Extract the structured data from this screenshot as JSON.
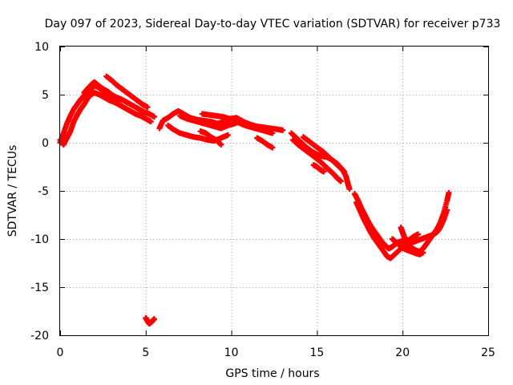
{
  "chart_data": {
    "type": "scatter",
    "title": "Day 097 of 2023, Sidereal Day-to-day VTEC variation (SDTVAR) for receiver p733",
    "xlabel": "GPS time / hours",
    "ylabel": "SDTVAR / TECUs",
    "xlim": [
      0,
      25
    ],
    "ylim": [
      -20,
      10
    ],
    "xticks": [
      0,
      5,
      10,
      15,
      20,
      25
    ],
    "yticks": [
      -20,
      -15,
      -10,
      -5,
      0,
      5,
      10
    ],
    "grid": true,
    "marker": "+",
    "series": [
      {
        "name": "SDTVAR",
        "color": "#ff0000",
        "tracks": [
          [
            [
              0.0,
              0.0
            ],
            [
              0.2,
              1.0
            ],
            [
              0.4,
              2.0
            ],
            [
              0.6,
              2.8
            ],
            [
              0.8,
              3.5
            ],
            [
              1.0,
              4.0
            ],
            [
              1.2,
              4.5
            ],
            [
              1.4,
              4.9
            ],
            [
              1.6,
              5.3
            ],
            [
              1.8,
              5.6
            ],
            [
              2.0,
              5.9
            ],
            [
              2.2,
              5.8
            ],
            [
              2.5,
              5.4
            ],
            [
              2.8,
              5.1
            ],
            [
              3.1,
              4.8
            ],
            [
              3.4,
              4.6
            ],
            [
              3.7,
              4.4
            ],
            [
              4.0,
              4.1
            ],
            [
              4.3,
              3.8
            ],
            [
              4.6,
              3.5
            ],
            [
              4.9,
              3.2
            ],
            [
              5.2,
              3.0
            ],
            [
              5.5,
              2.7
            ]
          ],
          [
            [
              0.0,
              0.3
            ],
            [
              0.2,
              -0.2
            ],
            [
              0.4,
              0.5
            ],
            [
              0.6,
              1.2
            ],
            [
              0.8,
              2.2
            ],
            [
              1.0,
              2.9
            ],
            [
              1.2,
              3.5
            ],
            [
              1.4,
              4.0
            ],
            [
              1.6,
              4.6
            ],
            [
              1.8,
              5.0
            ],
            [
              2.0,
              5.2
            ],
            [
              2.3,
              5.0
            ],
            [
              2.6,
              4.7
            ],
            [
              2.9,
              4.4
            ],
            [
              3.2,
              4.2
            ],
            [
              3.5,
              3.9
            ],
            [
              3.8,
              3.6
            ],
            [
              4.1,
              3.3
            ],
            [
              4.4,
              3.0
            ],
            [
              4.7,
              2.8
            ],
            [
              5.0,
              2.5
            ],
            [
              5.3,
              2.2
            ]
          ],
          [
            [
              1.4,
              5.2
            ],
            [
              1.6,
              5.6
            ],
            [
              1.8,
              6.0
            ],
            [
              2.0,
              6.3
            ],
            [
              2.2,
              6.0
            ],
            [
              2.5,
              5.6
            ],
            [
              2.8,
              5.3
            ],
            [
              3.0,
              5.0
            ],
            [
              3.3,
              4.7
            ],
            [
              3.6,
              4.5
            ]
          ],
          [
            [
              2.7,
              6.9
            ],
            [
              3.0,
              6.5
            ],
            [
              3.3,
              6.0
            ],
            [
              3.6,
              5.6
            ],
            [
              3.9,
              5.2
            ],
            [
              4.2,
              4.8
            ],
            [
              4.5,
              4.4
            ],
            [
              4.8,
              4.0
            ],
            [
              5.1,
              3.7
            ]
          ],
          [
            [
              5.8,
              1.5
            ],
            [
              6.0,
              2.3
            ],
            [
              6.3,
              2.6
            ],
            [
              6.6,
              3.0
            ],
            [
              6.9,
              3.3
            ],
            [
              7.2,
              3.0
            ],
            [
              7.6,
              2.6
            ],
            [
              8.0,
              2.4
            ],
            [
              8.4,
              2.3
            ],
            [
              8.8,
              2.2
            ],
            [
              9.2,
              2.0
            ],
            [
              9.6,
              2.2
            ],
            [
              10.0,
              2.5
            ],
            [
              10.4,
              2.1
            ],
            [
              10.8,
              1.8
            ],
            [
              11.2,
              1.6
            ],
            [
              11.6,
              1.4
            ],
            [
              12.0,
              1.2
            ],
            [
              12.4,
              1.0
            ]
          ],
          [
            [
              6.3,
              1.8
            ],
            [
              6.6,
              1.4
            ],
            [
              7.0,
              1.0
            ],
            [
              7.4,
              0.8
            ],
            [
              7.8,
              0.6
            ],
            [
              8.2,
              0.5
            ],
            [
              8.6,
              0.3
            ],
            [
              9.0,
              0.2
            ],
            [
              9.4,
              0.5
            ],
            [
              9.8,
              0.8
            ]
          ],
          [
            [
              7.0,
              2.8
            ],
            [
              7.4,
              2.5
            ],
            [
              7.8,
              2.3
            ],
            [
              8.2,
              2.1
            ],
            [
              8.6,
              1.9
            ],
            [
              9.0,
              1.7
            ],
            [
              9.4,
              1.5
            ],
            [
              9.8,
              1.8
            ],
            [
              10.2,
              2.0
            ],
            [
              10.6,
              2.3
            ]
          ],
          [
            [
              8.2,
              1.2
            ],
            [
              8.5,
              1.0
            ],
            [
              8.8,
              0.6
            ],
            [
              9.1,
              0.3
            ],
            [
              9.4,
              -0.2
            ]
          ],
          [
            [
              8.3,
              3.0
            ],
            [
              8.7,
              2.9
            ],
            [
              9.1,
              2.8
            ],
            [
              9.5,
              2.7
            ],
            [
              9.9,
              2.5
            ],
            [
              10.3,
              2.6
            ],
            [
              10.7,
              2.2
            ],
            [
              11.1,
              1.9
            ],
            [
              11.5,
              1.7
            ],
            [
              11.9,
              1.6
            ],
            [
              12.3,
              1.5
            ],
            [
              12.7,
              1.4
            ],
            [
              13.0,
              1.3
            ]
          ],
          [
            [
              11.5,
              0.5
            ],
            [
              11.8,
              0.2
            ],
            [
              12.1,
              -0.2
            ],
            [
              12.4,
              -0.5
            ]
          ],
          [
            [
              13.5,
              1.0
            ],
            [
              13.8,
              0.5
            ],
            [
              14.1,
              0.0
            ],
            [
              14.4,
              -0.5
            ],
            [
              14.7,
              -0.9
            ],
            [
              15.0,
              -1.2
            ],
            [
              15.3,
              -1.4
            ],
            [
              15.6,
              -1.5
            ],
            [
              15.9,
              -1.8
            ],
            [
              16.2,
              -2.2
            ],
            [
              16.5,
              -2.8
            ],
            [
              16.7,
              -3.5
            ],
            [
              16.8,
              -4.2
            ],
            [
              16.9,
              -4.8
            ]
          ],
          [
            [
              13.6,
              0.3
            ],
            [
              13.9,
              -0.2
            ],
            [
              14.2,
              -0.6
            ],
            [
              14.5,
              -1.0
            ],
            [
              14.8,
              -1.4
            ],
            [
              15.1,
              -1.8
            ],
            [
              15.4,
              -2.3
            ],
            [
              15.7,
              -2.8
            ],
            [
              16.0,
              -3.3
            ],
            [
              16.2,
              -3.7
            ],
            [
              16.4,
              -4.0
            ]
          ],
          [
            [
              14.2,
              0.6
            ],
            [
              14.5,
              0.2
            ],
            [
              14.8,
              -0.2
            ],
            [
              15.1,
              -0.6
            ],
            [
              15.4,
              -1.0
            ],
            [
              15.7,
              -1.5
            ],
            [
              16.0,
              -2.0
            ],
            [
              16.3,
              -2.5
            ],
            [
              16.6,
              -3.0
            ]
          ],
          [
            [
              14.8,
              -2.3
            ],
            [
              15.0,
              -2.5
            ],
            [
              15.2,
              -2.8
            ],
            [
              15.4,
              -3.0
            ]
          ],
          [
            [
              17.2,
              -5.3
            ],
            [
              17.4,
              -6.0
            ],
            [
              17.6,
              -6.8
            ],
            [
              17.8,
              -7.5
            ],
            [
              18.0,
              -8.2
            ],
            [
              18.2,
              -8.8
            ],
            [
              18.4,
              -9.3
            ],
            [
              18.6,
              -9.8
            ],
            [
              18.8,
              -10.3
            ],
            [
              19.0,
              -10.7
            ],
            [
              19.2,
              -11.0
            ],
            [
              19.4,
              -10.8
            ],
            [
              19.6,
              -10.5
            ],
            [
              19.8,
              -10.3
            ],
            [
              20.0,
              -10.2
            ],
            [
              20.2,
              -10.5
            ],
            [
              20.4,
              -10.8
            ],
            [
              20.6,
              -11.0
            ],
            [
              20.8,
              -11.2
            ],
            [
              21.0,
              -11.3
            ],
            [
              21.2,
              -11.0
            ],
            [
              21.4,
              -10.5
            ],
            [
              21.6,
              -10.0
            ],
            [
              21.8,
              -9.5
            ],
            [
              22.0,
              -9.0
            ],
            [
              22.2,
              -8.3
            ],
            [
              22.4,
              -7.3
            ],
            [
              22.6,
              -6.0
            ],
            [
              22.7,
              -5.2
            ]
          ],
          [
            [
              17.3,
              -6.2
            ],
            [
              17.5,
              -7.0
            ],
            [
              17.7,
              -7.8
            ],
            [
              17.9,
              -8.5
            ],
            [
              18.1,
              -9.2
            ],
            [
              18.3,
              -9.8
            ],
            [
              18.5,
              -10.3
            ],
            [
              18.7,
              -10.8
            ],
            [
              18.9,
              -11.3
            ],
            [
              19.1,
              -11.8
            ],
            [
              19.3,
              -12.0
            ],
            [
              19.6,
              -11.5
            ],
            [
              19.9,
              -11.0
            ],
            [
              20.2,
              -10.8
            ],
            [
              20.5,
              -10.4
            ],
            [
              20.8,
              -10.2
            ],
            [
              21.1,
              -10.0
            ],
            [
              21.4,
              -9.8
            ],
            [
              21.7,
              -9.6
            ],
            [
              22.0,
              -9.3
            ],
            [
              22.2,
              -8.8
            ],
            [
              22.4,
              -8.0
            ],
            [
              22.6,
              -7.0
            ]
          ],
          [
            [
              19.4,
              -10.0
            ],
            [
              19.6,
              -10.3
            ],
            [
              19.8,
              -10.6
            ],
            [
              20.0,
              -10.9
            ],
            [
              20.2,
              -11.1
            ],
            [
              20.5,
              -11.3
            ],
            [
              20.8,
              -11.5
            ],
            [
              21.0,
              -11.6
            ],
            [
              21.2,
              -11.4
            ]
          ],
          [
            [
              19.9,
              -8.8
            ],
            [
              20.0,
              -9.3
            ],
            [
              20.1,
              -9.8
            ],
            [
              20.3,
              -10.2
            ],
            [
              20.6,
              -9.8
            ],
            [
              20.9,
              -9.5
            ]
          ],
          [
            [
              5.0,
              -18.2
            ],
            [
              5.1,
              -18.5
            ],
            [
              5.2,
              -18.8
            ],
            [
              5.35,
              -18.6
            ],
            [
              5.5,
              -18.3
            ]
          ]
        ]
      }
    ]
  }
}
